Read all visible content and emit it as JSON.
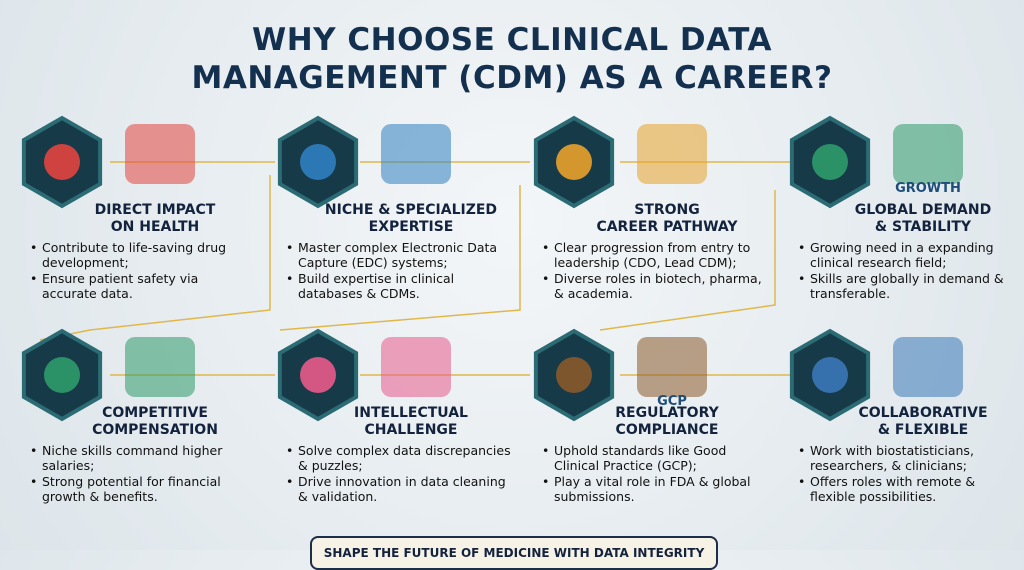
{
  "title": [
    "WHY CHOOSE CLINICAL DATA",
    "MANAGEMENT (CDM) AS A CAREER?"
  ],
  "cards": [
    {
      "title": [
        "DIRECT IMPACT",
        "ON HEALTH"
      ],
      "bullets": [
        "Contribute to life-saving drug development;",
        "Ensure patient safety via accurate data."
      ]
    },
    {
      "title": [
        "NICHE & SPECIALIZED",
        "EXPERTISE"
      ],
      "bullets": [
        "Master complex Electronic Data Capture (EDC) systems;",
        "Build expertise in clinical databases & CDMs."
      ]
    },
    {
      "title": [
        "STRONG",
        "CAREER PATHWAY"
      ],
      "bullets": [
        "Clear progression from entry to leadership (CDO, Lead CDM);",
        "Diverse roles in biotech, pharma, & academia."
      ]
    },
    {
      "title": [
        "GLOBAL DEMAND",
        "& STABILITY"
      ],
      "icon_label": "GROWTH",
      "bullets": [
        "Growing need in a expanding clinical research field;",
        "Skills are globally in demand & transferable."
      ]
    },
    {
      "title": [
        "COMPETITIVE",
        "COMPENSATION"
      ],
      "bullets": [
        "Niche skills command higher salaries;",
        "Strong potential for financial growth & benefits."
      ]
    },
    {
      "title": [
        "INTELLECTUAL",
        "CHALLENGE"
      ],
      "bullets": [
        "Solve complex data discrepancies & puzzles;",
        "Drive innovation in data cleaning & validation."
      ]
    },
    {
      "title": [
        "REGULATORY",
        "COMPLIANCE"
      ],
      "icon_label": "GCP",
      "bullets": [
        "Uphold standards like Good Clinical Practice (GCP);",
        "Play a vital role in FDA & global submissions."
      ]
    },
    {
      "title": [
        "COLLABORATIVE",
        "& FLEXIBLE"
      ],
      "bullets": [
        "Work with biostatisticians, researchers, & clinicians;",
        "Offers roles with remote & flexible possibilities."
      ]
    }
  ],
  "footer": "SHAPE THE FUTURE OF MEDICINE WITH DATA INTEGRITY"
}
